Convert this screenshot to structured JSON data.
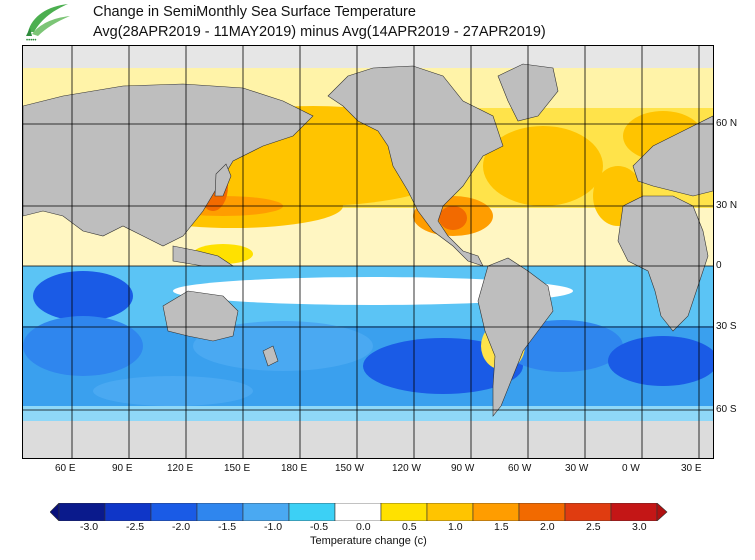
{
  "title": {
    "line1": "Change in SemiMonthly Sea Surface Temperature",
    "line2": "Avg(28APR2019 - 11MAY2019) minus Avg(14APR2019 - 27APR2019)"
  },
  "logo": {
    "caption": "•••••"
  },
  "axes": {
    "lon_labels": [
      "60 E",
      "90 E",
      "120 E",
      "150 E",
      "180 E",
      "150 W",
      "120 W",
      "90 W",
      "60 W",
      "30 W",
      "0 W",
      "30 E"
    ],
    "lat_labels": [
      "60 N",
      "30 N",
      "0",
      "30 S",
      "60 S"
    ]
  },
  "colorbar": {
    "title": "Temperature change  (c)",
    "tick_labels": [
      "-3.0",
      "-2.5",
      "-2.0",
      "-1.5",
      "-1.0",
      "-0.5",
      "0.0",
      "0.5",
      "1.0",
      "1.5",
      "2.0",
      "2.5",
      "3.0"
    ],
    "colors": [
      "#0a1a8c",
      "#0f36c8",
      "#1a5be6",
      "#2f86ee",
      "#4aa9f2",
      "#3cd0f5",
      "#ffffff",
      "#ffe100",
      "#ffc400",
      "#ff9d00",
      "#f26a00",
      "#e03c10",
      "#c41616"
    ],
    "under_color": "#08107a",
    "over_color": "#b01010"
  },
  "colors": {
    "land": "#bebebe",
    "sea_ice": "#dcdcdc",
    "grid": "#000000",
    "border": "#000000"
  }
}
